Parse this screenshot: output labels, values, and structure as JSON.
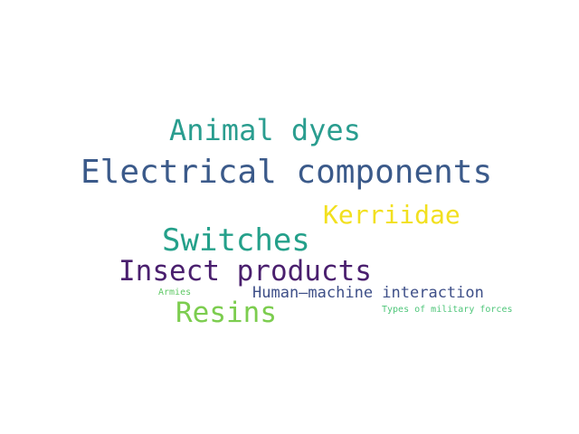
{
  "words": [
    {
      "text": "Animal dyes",
      "color": "#2a9d8f"
    },
    {
      "text": "Electrical components",
      "color": "#3b5a8a"
    },
    {
      "text": "Kerriidae",
      "color": "#f2e01f"
    },
    {
      "text": "Switches",
      "color": "#24a08a"
    },
    {
      "text": "Insect products",
      "color": "#4a1f6e"
    },
    {
      "text": "Armies",
      "color": "#5fc865"
    },
    {
      "text": "Human–machine interaction",
      "color": "#3e4f88"
    },
    {
      "text": "Resins",
      "color": "#7ccd4f"
    },
    {
      "text": "Types of military forces",
      "color": "#4fc67a"
    }
  ]
}
